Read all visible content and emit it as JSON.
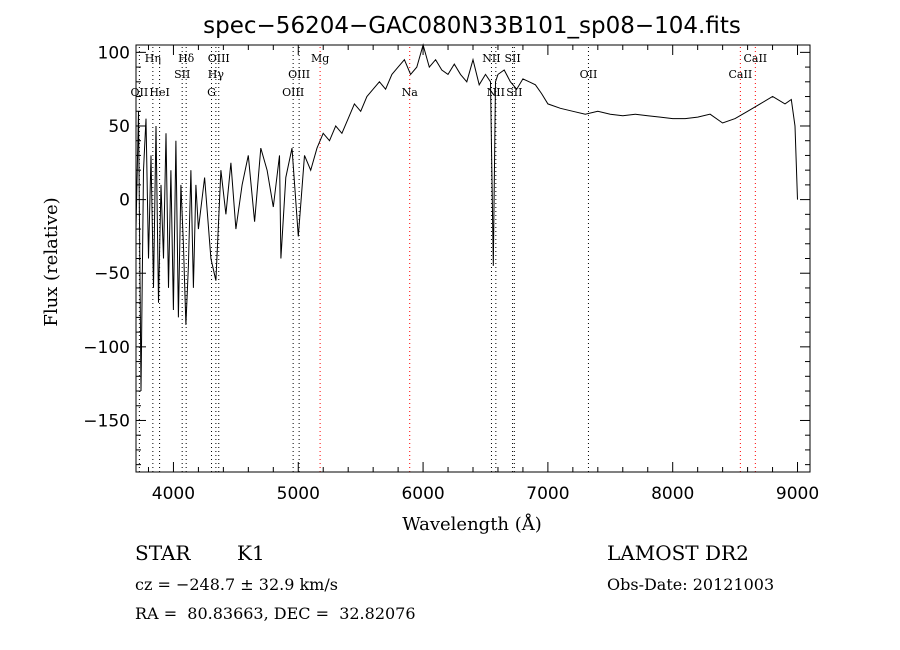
{
  "chart_data": {
    "type": "line",
    "title": "spec−56204−GAC080N33B101_sp08−104.fits",
    "xlabel": "Wavelength (Å)",
    "ylabel": "Flux (relative)",
    "xlim": [
      3700,
      9100
    ],
    "ylim": [
      -185,
      105
    ],
    "xticks": [
      4000,
      5000,
      6000,
      7000,
      8000,
      9000
    ],
    "yticks": [
      -150,
      -100,
      -50,
      0,
      50,
      100
    ],
    "series": [
      {
        "x": [
          3700,
          3720,
          3740,
          3760,
          3780,
          3800,
          3820,
          3840,
          3860,
          3880,
          3900,
          3920,
          3940,
          3960,
          3980,
          4000,
          4020,
          4040,
          4060,
          4080,
          4100,
          4120,
          4140,
          4160,
          4180,
          4200,
          4250,
          4300,
          4340,
          4380,
          4420,
          4460,
          4500,
          4550,
          4600,
          4650,
          4700,
          4750,
          4800,
          4850,
          4861,
          4900,
          4950,
          5000,
          5050,
          5100,
          5150,
          5200,
          5250,
          5300,
          5350,
          5400,
          5450,
          5500,
          5550,
          5600,
          5650,
          5700,
          5750,
          5800,
          5850,
          5900,
          5950,
          6000,
          6050,
          6100,
          6150,
          6200,
          6250,
          6300,
          6350,
          6400,
          6450,
          6500,
          6540,
          6563,
          6580,
          6600,
          6650,
          6700,
          6750,
          6800,
          6850,
          6900,
          6950,
          7000,
          7100,
          7200,
          7300,
          7400,
          7500,
          7600,
          7700,
          7800,
          7900,
          8000,
          8100,
          8200,
          8300,
          8400,
          8500,
          8600,
          8700,
          8800,
          8900,
          8950,
          8980,
          9000
        ],
        "y": [
          -20,
          60,
          -130,
          20,
          55,
          -40,
          30,
          -60,
          50,
          -70,
          10,
          -40,
          45,
          -60,
          20,
          -75,
          40,
          -80,
          10,
          -30,
          -85,
          -45,
          20,
          -60,
          10,
          -20,
          15,
          -40,
          -55,
          20,
          -10,
          25,
          -20,
          10,
          30,
          -15,
          35,
          20,
          -5,
          30,
          -40,
          15,
          35,
          -25,
          30,
          20,
          35,
          45,
          40,
          50,
          45,
          55,
          65,
          60,
          70,
          75,
          80,
          75,
          85,
          90,
          95,
          85,
          90,
          105,
          90,
          95,
          88,
          85,
          92,
          85,
          80,
          95,
          78,
          85,
          80,
          -45,
          80,
          85,
          88,
          80,
          75,
          82,
          80,
          78,
          72,
          65,
          62,
          60,
          58,
          60,
          58,
          57,
          58,
          57,
          56,
          55,
          55,
          56,
          58,
          52,
          55,
          60,
          65,
          70,
          65,
          68,
          50,
          0
        ]
      }
    ],
    "line_marks": [
      {
        "label": "OII",
        "x": 3727,
        "row": 3,
        "color": "#000000"
      },
      {
        "label": "Hη",
        "x": 3835,
        "row": 1,
        "color": "#000000"
      },
      {
        "label": "HeI",
        "x": 3889,
        "row": 3,
        "color": "#000000"
      },
      {
        "label": "SII",
        "x": 4070,
        "row": 2,
        "color": "#000000"
      },
      {
        "label": "Hδ",
        "x": 4102,
        "row": 1,
        "color": "#000000"
      },
      {
        "label": "G",
        "x": 4305,
        "row": 3,
        "color": "#000000"
      },
      {
        "label": "Hγ",
        "x": 4340,
        "row": 2,
        "color": "#000000"
      },
      {
        "label": "OIII",
        "x": 4363,
        "row": 1,
        "color": "#000000"
      },
      {
        "label": "OIII",
        "x": 4959,
        "row": 3,
        "color": "#000000"
      },
      {
        "label": "OIII",
        "x": 5007,
        "row": 2,
        "color": "#000000"
      },
      {
        "label": "Mg",
        "x": 5175,
        "row": 1,
        "color": "#ff0000"
      },
      {
        "label": "Na",
        "x": 5893,
        "row": 3,
        "color": "#ff0000"
      },
      {
        "label": "NII",
        "x": 6548,
        "row": 1,
        "color": "#000000"
      },
      {
        "label": "NII",
        "x": 6583,
        "row": 3,
        "color": "#000000"
      },
      {
        "label": "SII",
        "x": 6717,
        "row": 1,
        "color": "#000000"
      },
      {
        "label": "SII",
        "x": 6731,
        "row": 3,
        "color": "#000000"
      },
      {
        "label": "OII",
        "x": 7325,
        "row": 2,
        "color": "#000000"
      },
      {
        "label": "CaII",
        "x": 8542,
        "row": 2,
        "color": "#ff0000"
      },
      {
        "label": "CaII",
        "x": 8662,
        "row": 1,
        "color": "#ff0000"
      }
    ]
  },
  "info": {
    "class_label": "STAR",
    "subclass_label": "K1",
    "survey_label": "LAMOST DR2",
    "cz_text": "cz = −248.7 ± 32.9 km/s",
    "obs_date_text": "Obs-Date: 20121003",
    "coords_text": "RA =  80.83663, DEC =  32.82076"
  }
}
